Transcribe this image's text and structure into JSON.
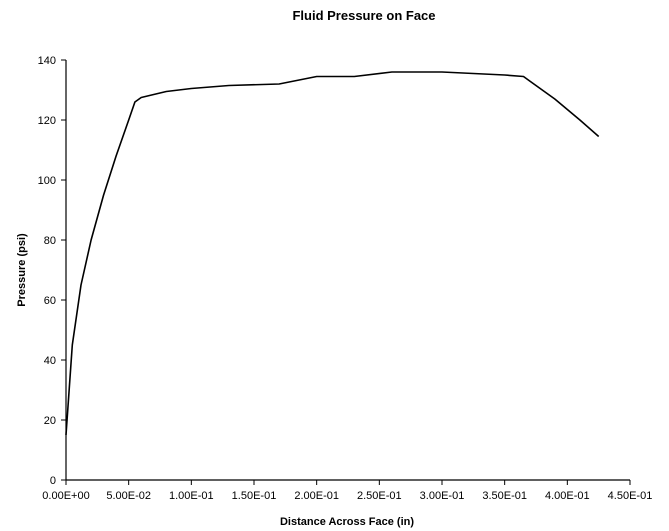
{
  "chart_data": {
    "type": "line",
    "title": "Fluid Pressure on Face",
    "xlabel": "Distance Across Face (in)",
    "ylabel": "Pressure (psi)",
    "xlim": [
      0,
      0.45
    ],
    "ylim": [
      0,
      140
    ],
    "x_ticks": [
      0,
      0.05,
      0.1,
      0.15,
      0.2,
      0.25,
      0.3,
      0.35,
      0.4,
      0.45
    ],
    "x_tick_labels": [
      "0.00E+00",
      "5.00E-02",
      "1.00E-01",
      "1.50E-01",
      "2.00E-01",
      "2.50E-01",
      "3.00E-01",
      "3.50E-01",
      "4.00E-01",
      "4.50E-01"
    ],
    "y_ticks": [
      0,
      20,
      40,
      60,
      80,
      100,
      120,
      140
    ],
    "y_tick_labels": [
      "0",
      "20",
      "40",
      "60",
      "80",
      "100",
      "120",
      "140"
    ],
    "grid": false,
    "legend": "none",
    "series": [
      {
        "x": [
          0.0,
          0.005,
          0.012,
          0.02,
          0.03,
          0.04,
          0.05,
          0.055,
          0.06,
          0.07,
          0.08,
          0.1,
          0.13,
          0.17,
          0.2,
          0.23,
          0.26,
          0.3,
          0.35,
          0.365,
          0.37,
          0.39,
          0.41,
          0.425
        ],
        "y": [
          15,
          45,
          65,
          80,
          95,
          108,
          120,
          126,
          127.5,
          128.5,
          129.5,
          130.5,
          131.5,
          132,
          134.5,
          134.5,
          136,
          136,
          135,
          134.5,
          133,
          127,
          120,
          114.5
        ]
      }
    ]
  }
}
